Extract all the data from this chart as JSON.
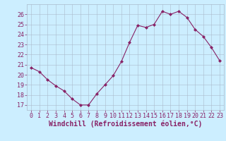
{
  "x": [
    0,
    1,
    2,
    3,
    4,
    5,
    6,
    7,
    8,
    9,
    10,
    11,
    12,
    13,
    14,
    15,
    16,
    17,
    18,
    19,
    20,
    21,
    22,
    23
  ],
  "y": [
    20.7,
    20.3,
    19.5,
    18.9,
    18.4,
    17.6,
    17.0,
    17.0,
    18.1,
    19.0,
    19.9,
    21.3,
    23.2,
    24.9,
    24.7,
    25.0,
    26.3,
    26.0,
    26.3,
    25.7,
    24.5,
    23.8,
    22.7,
    21.4
  ],
  "line_color": "#882266",
  "marker": "D",
  "marker_size": 2,
  "bg_color": "#cceeff",
  "grid_color": "#aabbcc",
  "xlabel": "Windchill (Refroidissement éolien,°C)",
  "xlabel_color": "#882266",
  "xlabel_fontsize": 7,
  "yticks": [
    17,
    18,
    19,
    20,
    21,
    22,
    23,
    24,
    25,
    26
  ],
  "xtick_labels": [
    "0",
    "1",
    "2",
    "3",
    "4",
    "5",
    "6",
    "7",
    "8",
    "9",
    "10",
    "11",
    "12",
    "13",
    "14",
    "15",
    "16",
    "17",
    "18",
    "19",
    "20",
    "21",
    "22",
    "23"
  ],
  "ylim": [
    16.5,
    27.0
  ],
  "xlim": [
    -0.5,
    23.5
  ],
  "tick_fontsize": 6,
  "tick_color": "#882266"
}
